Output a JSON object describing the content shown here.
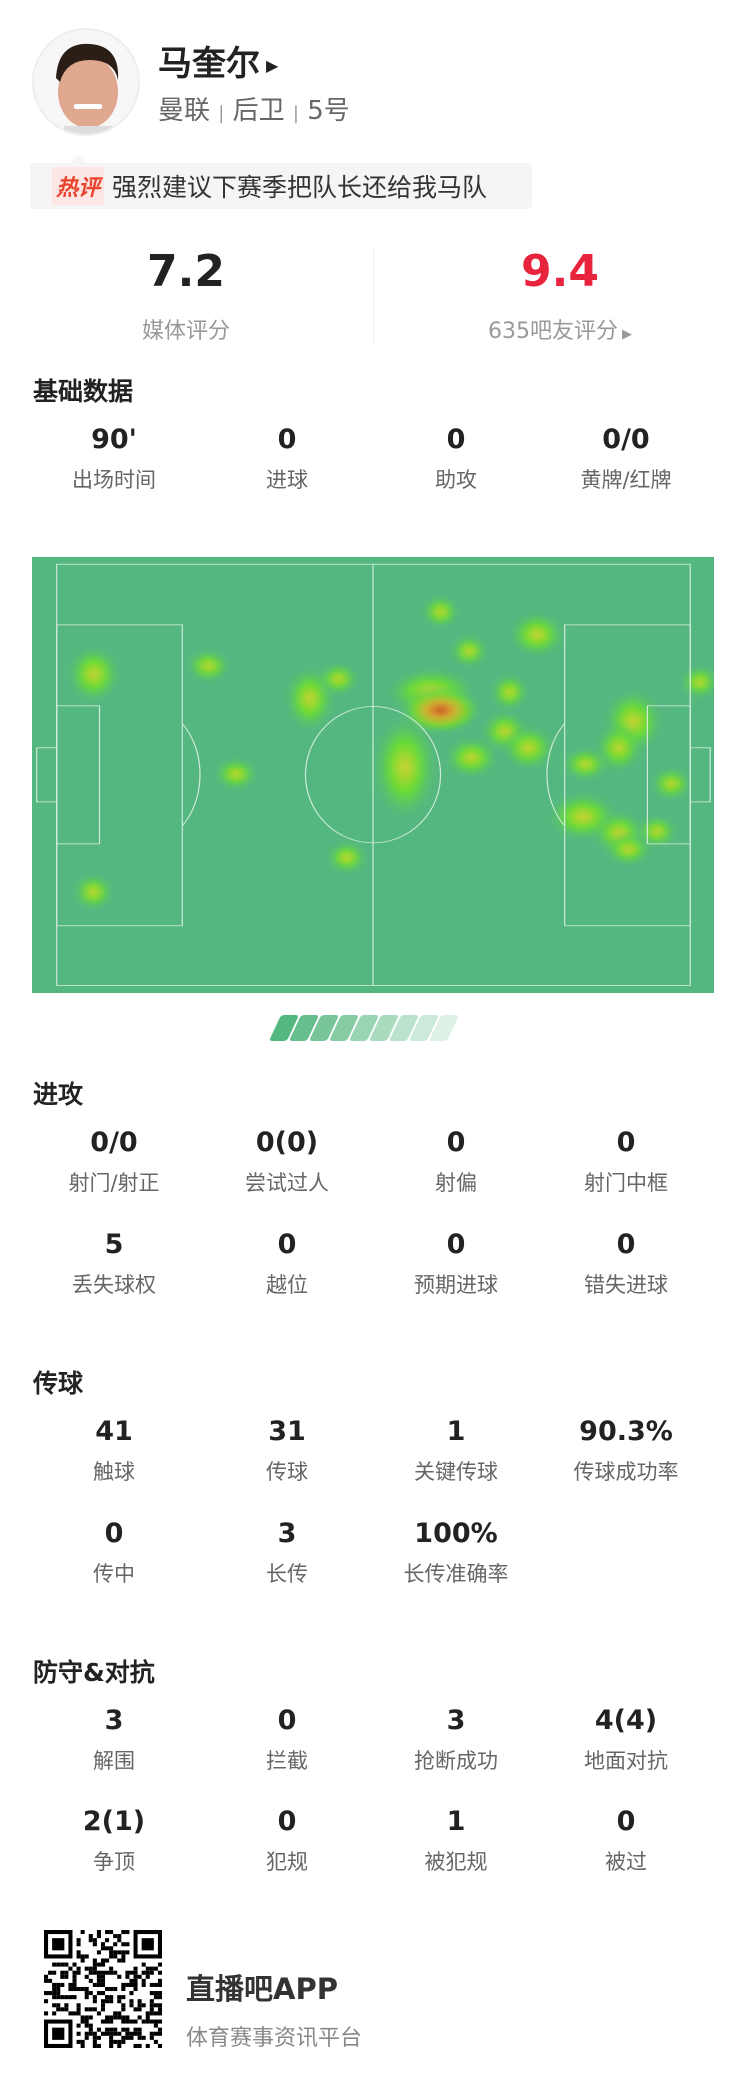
{
  "player": {
    "name": "马奎尔",
    "team": "曼联",
    "position": "后卫",
    "number": "5号",
    "sep": "|"
  },
  "hot_comment": {
    "tag": "热评",
    "text": "强烈建议下赛季把队长还给我马队"
  },
  "ratings": {
    "media": {
      "value": "7.2",
      "label": "媒体评分"
    },
    "fans": {
      "value": "9.4",
      "label": "635吧友评分",
      "color": "#e8243c"
    }
  },
  "sections": [
    {
      "title": "基础数据",
      "rows": [
        [
          {
            "v": "90'",
            "l": "出场时间"
          },
          {
            "v": "0",
            "l": "进球"
          },
          {
            "v": "0",
            "l": "助攻"
          },
          {
            "v": "0/0",
            "l": "黄牌/红牌"
          }
        ]
      ]
    },
    {
      "title": "进攻",
      "rows": [
        [
          {
            "v": "0/0",
            "l": "射门/射正"
          },
          {
            "v": "0(0)",
            "l": "尝试过人"
          },
          {
            "v": "0",
            "l": "射偏"
          },
          {
            "v": "0",
            "l": "射门中框"
          }
        ],
        [
          {
            "v": "5",
            "l": "丢失球权"
          },
          {
            "v": "0",
            "l": "越位"
          },
          {
            "v": "0",
            "l": "预期进球"
          },
          {
            "v": "0",
            "l": "错失进球"
          }
        ]
      ]
    },
    {
      "title": "传球",
      "rows": [
        [
          {
            "v": "41",
            "l": "触球"
          },
          {
            "v": "31",
            "l": "传球"
          },
          {
            "v": "1",
            "l": "关键传球"
          },
          {
            "v": "90.3%",
            "l": "传球成功率"
          }
        ],
        [
          {
            "v": "0",
            "l": "传中"
          },
          {
            "v": "3",
            "l": "长传"
          },
          {
            "v": "100%",
            "l": "长传准确率"
          }
        ]
      ]
    },
    {
      "title": "防守&对抗",
      "rows": [
        [
          {
            "v": "3",
            "l": "解围"
          },
          {
            "v": "0",
            "l": "拦截"
          },
          {
            "v": "3",
            "l": "抢断成功"
          },
          {
            "v": "4(4)",
            "l": "地面对抗"
          }
        ],
        [
          {
            "v": "2(1)",
            "l": "争顶"
          },
          {
            "v": "0",
            "l": "犯规"
          },
          {
            "v": "1",
            "l": "被犯规"
          },
          {
            "v": "0",
            "l": "被过"
          }
        ]
      ]
    }
  ],
  "heatmap": {
    "pitch_color": "#55b780",
    "attack_direction": "left"
  },
  "footer": {
    "app_name": "直播吧APP",
    "slogan": "体育赛事资讯平台"
  }
}
